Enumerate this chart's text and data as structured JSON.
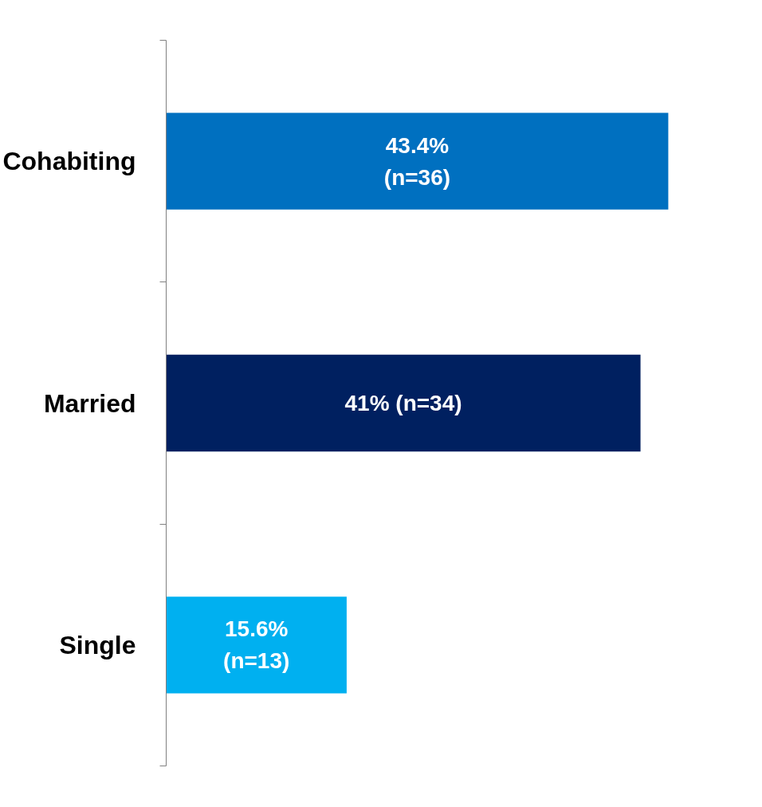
{
  "chart_data": {
    "type": "bar",
    "orientation": "horizontal",
    "categories": [
      "Cohabiting",
      "Married",
      "Single"
    ],
    "values": [
      43.4,
      41,
      15.6
    ],
    "colors": [
      "#0070c0",
      "#002060",
      "#00b0f0"
    ],
    "value_labels": [
      "43.4%\n(n=36)",
      "41% (n=34)",
      "15.6%\n(n=13)"
    ],
    "grid": false
  }
}
